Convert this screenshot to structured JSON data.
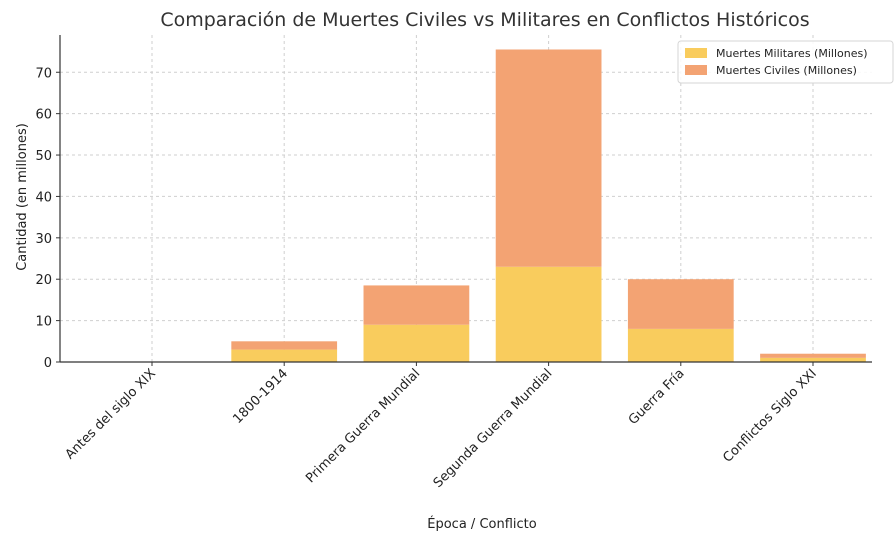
{
  "chart_data": {
    "type": "bar",
    "stacked": true,
    "title": "Comparación de Muertes Civiles vs Militares en Conflictos Históricos",
    "xlabel": "Época / Conflicto",
    "ylabel": "Cantidad (en millones)",
    "categories": [
      "Antes del siglo XIX",
      "1800-1914",
      "Primera Guerra Mundial",
      "Segunda Guerra Mundial",
      "Guerra Fría",
      "Conflictos Siglo XXI"
    ],
    "series": [
      {
        "name": "Muertes Militares (Millones)",
        "color": "#f9cc5d",
        "values": [
          0,
          3,
          9,
          23,
          8,
          1
        ]
      },
      {
        "name": "Muertes Civiles (Millones)",
        "color": "#f3a373",
        "values": [
          0,
          2,
          9.5,
          52.5,
          12,
          1
        ]
      }
    ],
    "ylim": [
      0,
      79
    ],
    "yticks": [
      0,
      10,
      20,
      30,
      40,
      50,
      60,
      70
    ],
    "grid": true,
    "legend_position": "top-right"
  }
}
